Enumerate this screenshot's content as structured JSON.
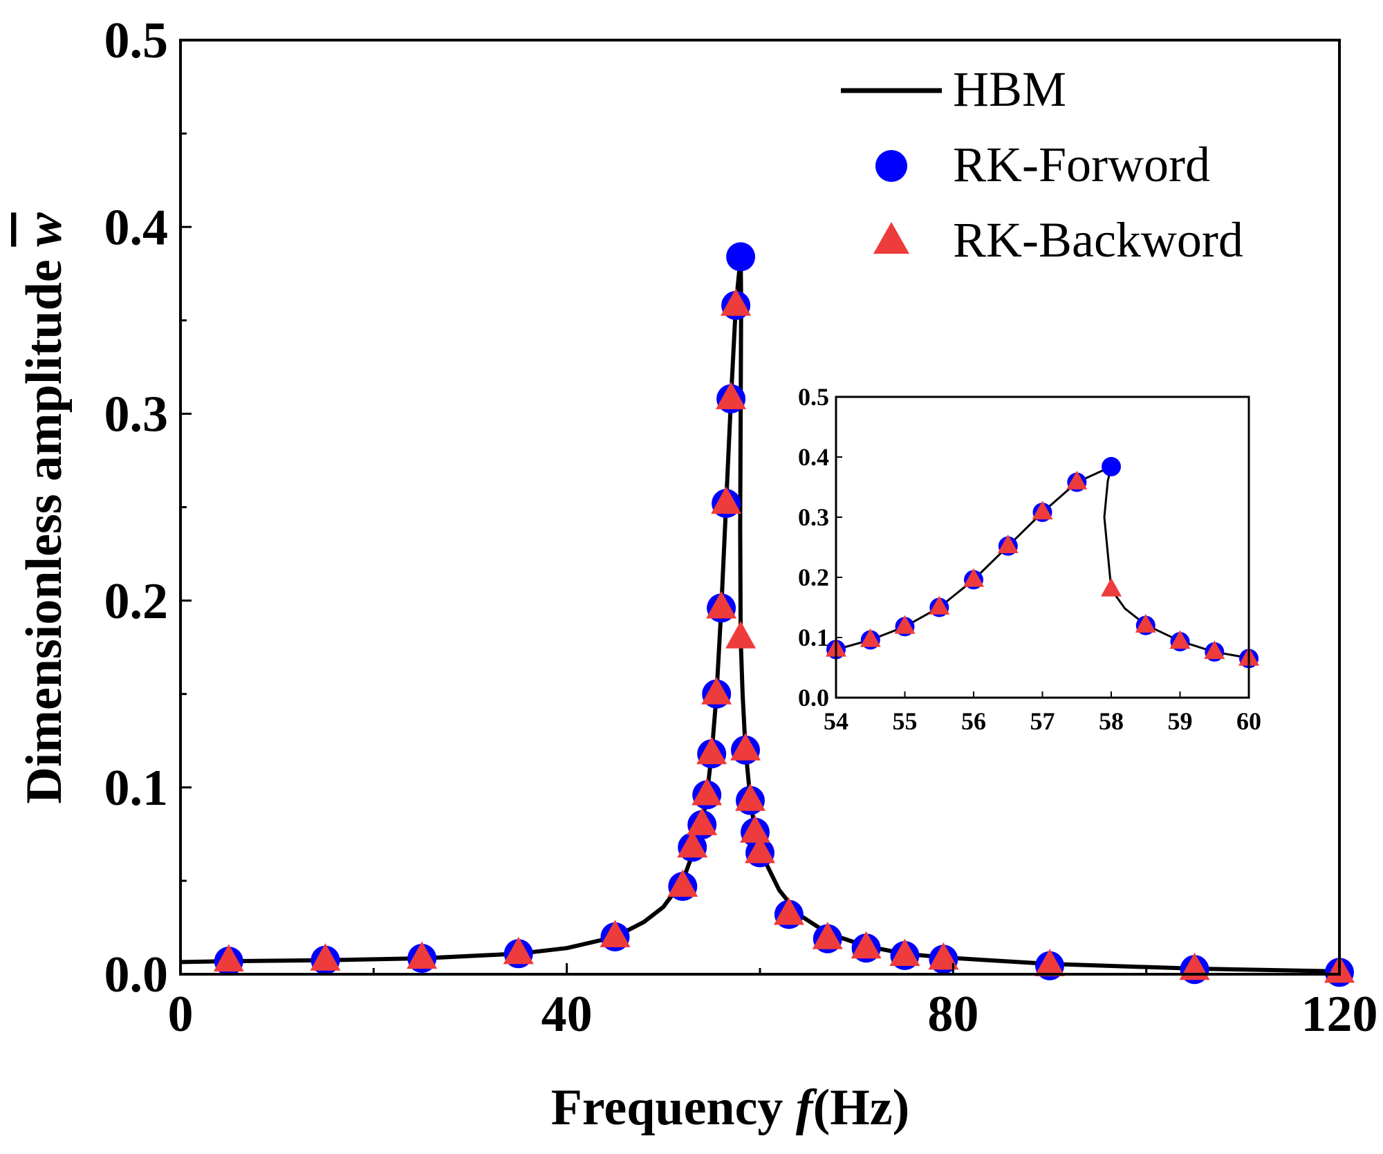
{
  "chart_data": [
    {
      "type": "line",
      "role": "main",
      "xlabel_prefix": "Frequency ",
      "xlabel_symbol": "f",
      "xlabel_unit": "(Hz)",
      "ylabel_prefix": "Dimensionless amplitude ",
      "ylabel_symbol": "w",
      "xlim": [
        0,
        120
      ],
      "ylim": [
        0,
        0.5
      ],
      "x_major_ticks": [
        0,
        40,
        80,
        120
      ],
      "x_tick_labels": [
        "0",
        "40",
        "80",
        "120"
      ],
      "x_minor_ticks": [
        20,
        60,
        100
      ],
      "y_major_ticks": [
        0,
        0.1,
        0.2,
        0.3,
        0.4,
        0.5
      ],
      "y_tick_labels": [
        "0.0",
        "0.1",
        "0.2",
        "0.3",
        "0.4",
        "0.5"
      ],
      "y_minor_ticks": [
        0.05,
        0.15,
        0.25,
        0.35,
        0.45
      ],
      "legend": {
        "position": "top-right",
        "entries": [
          {
            "label": "HBM",
            "marker": "line",
            "color": "#000000"
          },
          {
            "label": "RK-Forword",
            "marker": "circle",
            "color": "#0000ff"
          },
          {
            "label": "RK-Backword",
            "marker": "triangle",
            "color": "#ee3b3b"
          }
        ]
      },
      "series": [
        {
          "name": "HBM",
          "color": "#000000",
          "x": [
            0,
            5,
            15,
            25,
            35,
            40,
            45,
            48,
            50,
            52,
            53,
            54,
            54.5,
            55,
            55.5,
            56,
            56.5,
            57,
            57.5,
            58,
            58.05,
            58.0,
            57.95,
            58.0,
            58.2,
            58.5,
            59,
            59.5,
            60,
            62,
            64,
            67,
            71,
            75,
            79,
            90,
            105,
            120
          ],
          "y": [
            0.0065,
            0.007,
            0.0075,
            0.0085,
            0.011,
            0.014,
            0.02,
            0.028,
            0.036,
            0.05,
            0.064,
            0.08,
            0.096,
            0.118,
            0.15,
            0.196,
            0.252,
            0.308,
            0.358,
            0.384,
            0.36,
            0.3,
            0.24,
            0.18,
            0.15,
            0.121,
            0.094,
            0.076,
            0.066,
            0.045,
            0.032,
            0.022,
            0.015,
            0.011,
            0.009,
            0.0055,
            0.003,
            0.0015
          ]
        },
        {
          "name": "RK-Forword",
          "color": "#0000ff",
          "x": [
            5,
            15,
            25,
            35,
            45,
            52,
            53,
            54,
            54.5,
            55,
            55.5,
            56,
            56.5,
            57,
            57.5,
            58,
            58.5,
            59,
            59.5,
            60,
            63,
            67,
            71,
            75,
            79,
            90,
            105,
            120
          ],
          "y": [
            0.007,
            0.0075,
            0.0085,
            0.011,
            0.02,
            0.047,
            0.068,
            0.08,
            0.096,
            0.118,
            0.15,
            0.196,
            0.252,
            0.308,
            0.358,
            0.384,
            0.12,
            0.093,
            0.076,
            0.065,
            0.032,
            0.019,
            0.014,
            0.01,
            0.008,
            0.0045,
            0.0025,
            0.001
          ]
        },
        {
          "name": "RK-Backword",
          "color": "#ee3b3b",
          "x": [
            5,
            15,
            25,
            35,
            45,
            52,
            53,
            54,
            54.5,
            55,
            55.5,
            56,
            56.5,
            57,
            57.5,
            58,
            58.5,
            59,
            59.5,
            60,
            63,
            67,
            71,
            75,
            79,
            90,
            105,
            120
          ],
          "y": [
            0.007,
            0.0075,
            0.0085,
            0.011,
            0.02,
            0.047,
            0.068,
            0.08,
            0.096,
            0.118,
            0.15,
            0.196,
            0.252,
            0.308,
            0.358,
            0.18,
            0.12,
            0.093,
            0.076,
            0.065,
            0.032,
            0.019,
            0.014,
            0.01,
            0.008,
            0.0045,
            0.0025,
            0.001
          ]
        }
      ]
    },
    {
      "type": "line",
      "role": "inset",
      "xlim": [
        54,
        60
      ],
      "ylim": [
        0,
        0.5
      ],
      "x_major_ticks": [
        54,
        55,
        56,
        57,
        58,
        59,
        60
      ],
      "x_tick_labels": [
        "54",
        "55",
        "56",
        "57",
        "58",
        "59",
        "60"
      ],
      "y_major_ticks": [
        0,
        0.1,
        0.2,
        0.3,
        0.4,
        0.5
      ],
      "y_tick_labels": [
        "0.0",
        "0.1",
        "0.2",
        "0.3",
        "0.4",
        "0.5"
      ],
      "series": [
        {
          "name": "HBM",
          "color": "#000000",
          "x": [
            54,
            54.5,
            55,
            55.5,
            56,
            56.5,
            57,
            57.5,
            58,
            57.95,
            57.9,
            57.95,
            58.0,
            58.2,
            58.5,
            59,
            59.5,
            60
          ],
          "y": [
            0.08,
            0.096,
            0.118,
            0.15,
            0.196,
            0.252,
            0.308,
            0.358,
            0.384,
            0.36,
            0.3,
            0.24,
            0.18,
            0.148,
            0.121,
            0.094,
            0.076,
            0.066
          ]
        },
        {
          "name": "RK-Forword",
          "color": "#0000ff",
          "x": [
            54,
            54.5,
            55,
            55.5,
            56,
            56.5,
            57,
            57.5,
            58,
            58.5,
            59,
            59.5,
            60
          ],
          "y": [
            0.08,
            0.096,
            0.118,
            0.15,
            0.196,
            0.252,
            0.308,
            0.358,
            0.384,
            0.12,
            0.093,
            0.076,
            0.065
          ]
        },
        {
          "name": "RK-Backword",
          "color": "#ee3b3b",
          "x": [
            54,
            54.5,
            55,
            55.5,
            56,
            56.5,
            57,
            57.5,
            58,
            58.5,
            59,
            59.5,
            60
          ],
          "y": [
            0.08,
            0.096,
            0.118,
            0.15,
            0.196,
            0.252,
            0.308,
            0.358,
            0.18,
            0.12,
            0.093,
            0.076,
            0.065
          ]
        }
      ]
    }
  ]
}
